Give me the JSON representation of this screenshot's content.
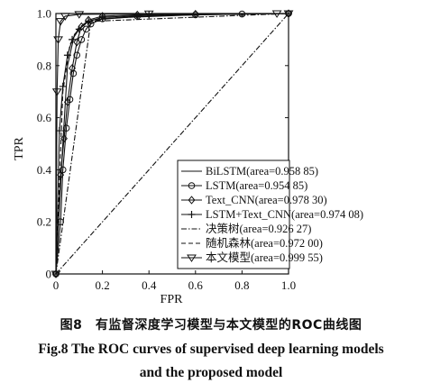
{
  "chart_data": {
    "type": "line",
    "xlabel": "FPR",
    "ylabel": "TPR",
    "xlim": [
      0,
      1
    ],
    "ylim": [
      0,
      1
    ],
    "xticks": [
      "0",
      "0.2",
      "0.4",
      "0.6",
      "0.8",
      "1.0"
    ],
    "yticks": [
      "0",
      "0.2",
      "0.4",
      "0.6",
      "0.8",
      "1.0"
    ],
    "grid": false,
    "legend_position": "bottom-right",
    "series": [
      {
        "name": "BiLSTM(area=0.958 85)",
        "style": "solid",
        "marker": "none",
        "x": [
          0,
          0.03,
          0.05,
          0.08,
          0.12,
          0.16,
          0.3,
          0.6,
          1.0
        ],
        "y": [
          0,
          0.5,
          0.8,
          0.92,
          0.96,
          0.975,
          0.985,
          0.995,
          1.0
        ]
      },
      {
        "name": "LSTM(area=0.954 85)",
        "style": "solid",
        "marker": "circle",
        "x": [
          0,
          0.02,
          0.03,
          0.045,
          0.06,
          0.075,
          0.09,
          0.11,
          0.13,
          0.15,
          0.2,
          0.35,
          0.6,
          0.8,
          1.0
        ],
        "y": [
          0,
          0.2,
          0.4,
          0.56,
          0.67,
          0.77,
          0.84,
          0.9,
          0.94,
          0.96,
          0.98,
          0.99,
          0.995,
          0.998,
          1.0
        ]
      },
      {
        "name": "Text_CNN(area=0.978 30)",
        "style": "solid",
        "marker": "diamond",
        "x": [
          0,
          0.02,
          0.035,
          0.05,
          0.07,
          0.09,
          0.11,
          0.14,
          0.2,
          0.35,
          0.6,
          1.0
        ],
        "y": [
          0,
          0.38,
          0.52,
          0.66,
          0.79,
          0.89,
          0.95,
          0.975,
          0.99,
          0.995,
          0.998,
          1.0
        ]
      },
      {
        "name": "LSTM+Text_CNN(area=0.974 08)",
        "style": "solid",
        "marker": "plus",
        "x": [
          0,
          0.015,
          0.03,
          0.05,
          0.07,
          0.1,
          0.14,
          0.2,
          0.4,
          1.0
        ],
        "y": [
          0,
          0.55,
          0.72,
          0.84,
          0.9,
          0.94,
          0.97,
          0.985,
          0.995,
          1.0
        ]
      },
      {
        "name": "决策树(area=0.926 27)",
        "style": "dashdot",
        "marker": "none",
        "x": [
          0,
          0.15,
          1.0
        ],
        "y": [
          0,
          0.97,
          1.0
        ]
      },
      {
        "name": "随机森林(area=0.972 00)",
        "style": "dashed",
        "marker": "none",
        "x": [
          0,
          0.03,
          0.06,
          0.1,
          0.2,
          0.5,
          1.0
        ],
        "y": [
          0,
          0.7,
          0.88,
          0.95,
          0.98,
          0.995,
          1.0
        ]
      },
      {
        "name": "本文模型(area=0.999 55)",
        "style": "solid",
        "marker": "triangle-down",
        "x": [
          0,
          0.005,
          0.01,
          0.02,
          0.04,
          0.1,
          0.4,
          0.95,
          1.0
        ],
        "y": [
          0,
          0.7,
          0.9,
          0.97,
          0.99,
          0.997,
          0.999,
          1.0,
          1.0
        ]
      },
      {
        "name": "",
        "style": "dashdot",
        "marker": "none",
        "x": [
          0,
          1
        ],
        "y": [
          0,
          1
        ]
      }
    ]
  },
  "caption": {
    "cn": "图8　有监督深度学习模型与本文模型的ROC曲线图",
    "en_line1": "Fig.8   The ROC curves of supervised deep learning models",
    "en_line2": "and the proposed model"
  }
}
